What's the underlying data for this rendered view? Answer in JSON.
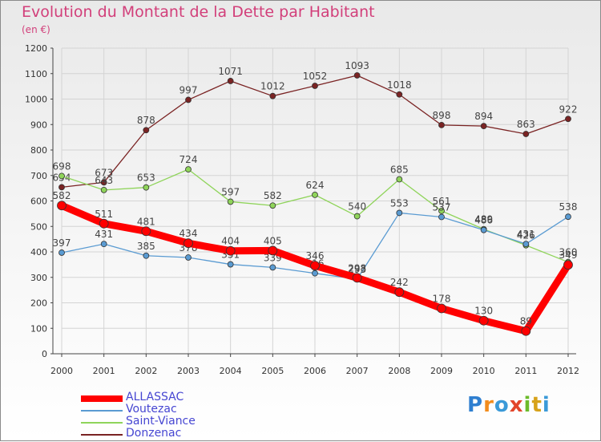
{
  "title": "Evolution du Montant de la Dette par Habitant",
  "subtitle": "(en €)",
  "logo_text": "Proxiti",
  "chart_data": {
    "type": "line",
    "title": "Evolution du Montant de la Dette par Habitant",
    "subtitle": "(en €)",
    "x": [
      "2000",
      "2001",
      "2002",
      "2003",
      "2004",
      "2005",
      "2006",
      "2007",
      "2008",
      "2009",
      "2010",
      "2011",
      "2012"
    ],
    "ylim": [
      0,
      1200
    ],
    "yticks": [
      0,
      100,
      200,
      300,
      400,
      500,
      600,
      700,
      800,
      900,
      1000,
      1100,
      1200
    ],
    "grid": true,
    "legend_position": "bottom-left",
    "series": [
      {
        "name": "Donzenac",
        "color": "#7a2323",
        "values": [
          654,
          673,
          878,
          997,
          1071,
          1012,
          1052,
          1093,
          1018,
          898,
          894,
          863,
          922
        ]
      },
      {
        "name": "Saint-Viance",
        "color": "#8fd45a",
        "values": [
          698,
          643,
          653,
          724,
          597,
          582,
          624,
          540,
          685,
          561,
          489,
          426,
          360
        ]
      },
      {
        "name": "Voutezac",
        "color": "#5a9bd2",
        "values": [
          397,
          431,
          385,
          378,
          351,
          339,
          316,
          293,
          553,
          537,
          486,
          431,
          538
        ]
      },
      {
        "name": "ALLASSAC",
        "color": "#ff0000",
        "values": [
          582,
          511,
          481,
          434,
          404,
          405,
          346,
          298,
          242,
          178,
          130,
          89,
          349
        ]
      }
    ],
    "legend": [
      "ALLASSAC",
      "Voutezac",
      "Saint-Viance",
      "Donzenac"
    ]
  }
}
